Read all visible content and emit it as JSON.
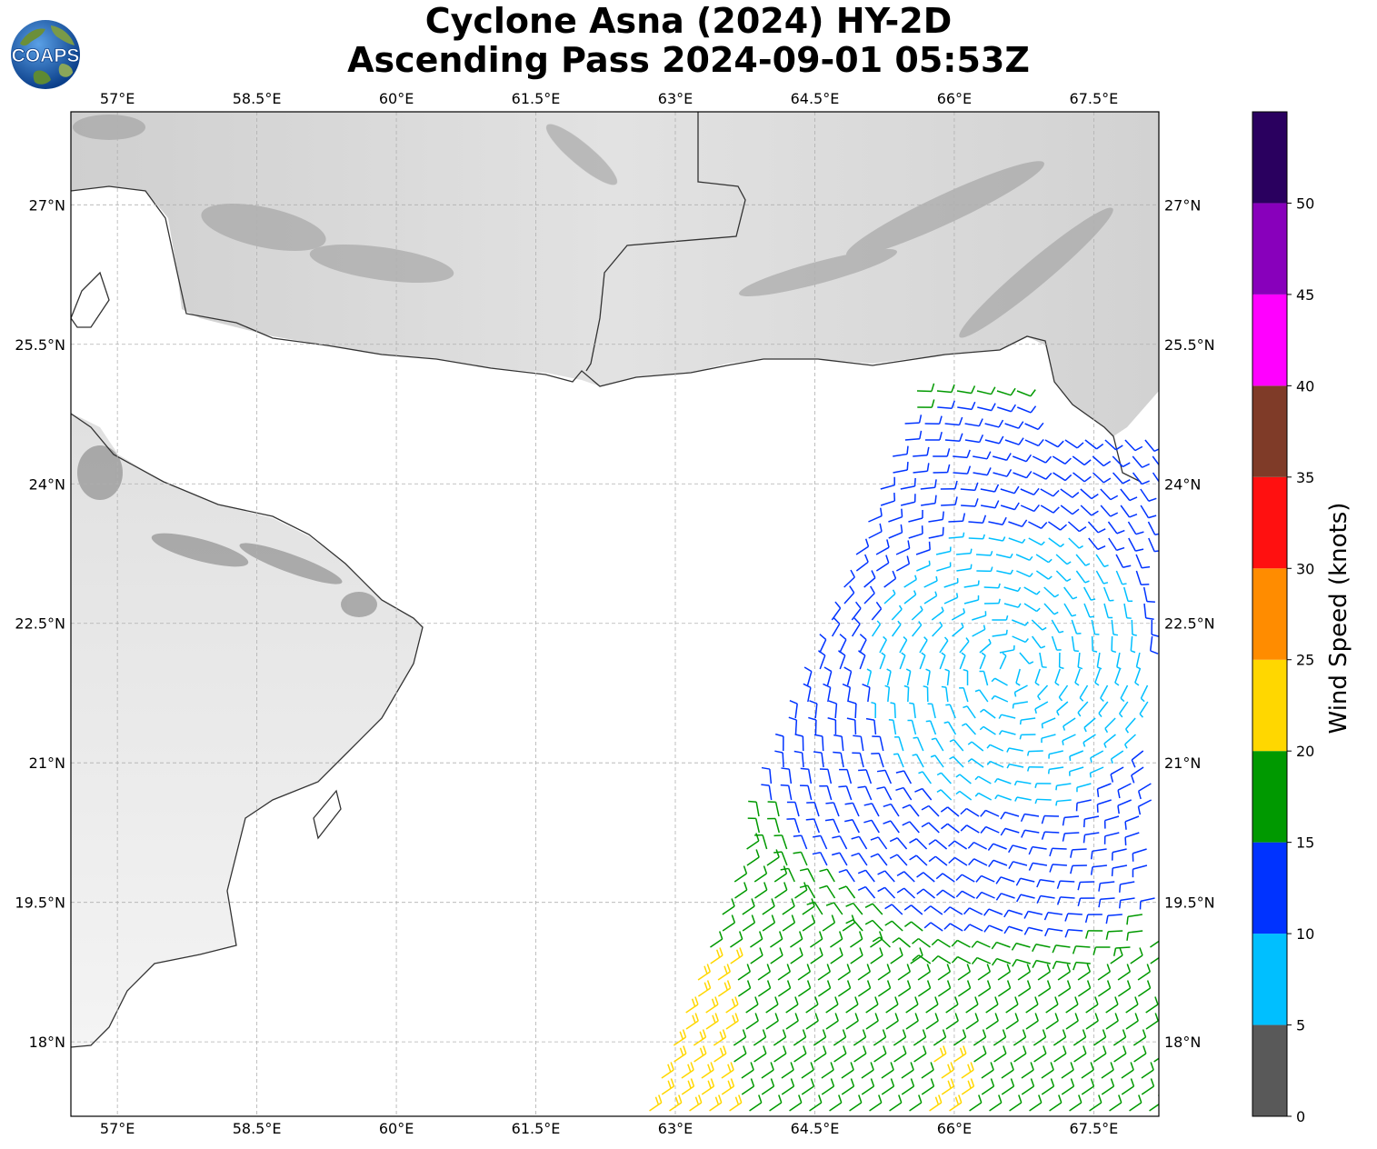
{
  "title": {
    "line1": "Cyclone Asna (2024) HY-2D",
    "line2": "Ascending Pass 2024-09-01 05:53Z"
  },
  "logo": {
    "text": "COAPS",
    "icon": "globe-icon"
  },
  "map": {
    "lon_range": [
      56.5,
      68.2
    ],
    "lat_range": [
      17.2,
      28.0
    ],
    "lon_ticks": [
      "57°E",
      "58.5°E",
      "60°E",
      "61.5°E",
      "63°E",
      "64.5°E",
      "66°E",
      "67.5°E"
    ],
    "lat_ticks": [
      "27°N",
      "25.5°N",
      "24°N",
      "22.5°N",
      "21°N",
      "19.5°N",
      "18°N"
    ],
    "gridlines": true,
    "background": "grayscale satellite imagery",
    "coastline_color": "#333333"
  },
  "wind_field": {
    "type": "wind barbs",
    "swath_edge": "western",
    "cyclone_center_approx": [
      66.6,
      22.0
    ]
  },
  "colorbar": {
    "label": "Wind Speed (knots)",
    "ticks": [
      "0",
      "5",
      "10",
      "15",
      "20",
      "25",
      "30",
      "35",
      "40",
      "45",
      "50"
    ],
    "bins": [
      {
        "range": [
          0,
          5
        ],
        "color": "#595959"
      },
      {
        "range": [
          5,
          10
        ],
        "color": "#00bfff"
      },
      {
        "range": [
          10,
          15
        ],
        "color": "#0033ff"
      },
      {
        "range": [
          15,
          20
        ],
        "color": "#009900"
      },
      {
        "range": [
          20,
          25
        ],
        "color": "#ffd700"
      },
      {
        "range": [
          25,
          30
        ],
        "color": "#ff8c00"
      },
      {
        "range": [
          30,
          35
        ],
        "color": "#ff1010"
      },
      {
        "range": [
          35,
          40
        ],
        "color": "#7f3b28"
      },
      {
        "range": [
          40,
          45
        ],
        "color": "#ff00ff"
      },
      {
        "range": [
          45,
          50
        ],
        "color": "#8800bb"
      },
      {
        "range": [
          50,
          55
        ],
        "color": "#2a005f"
      }
    ]
  }
}
